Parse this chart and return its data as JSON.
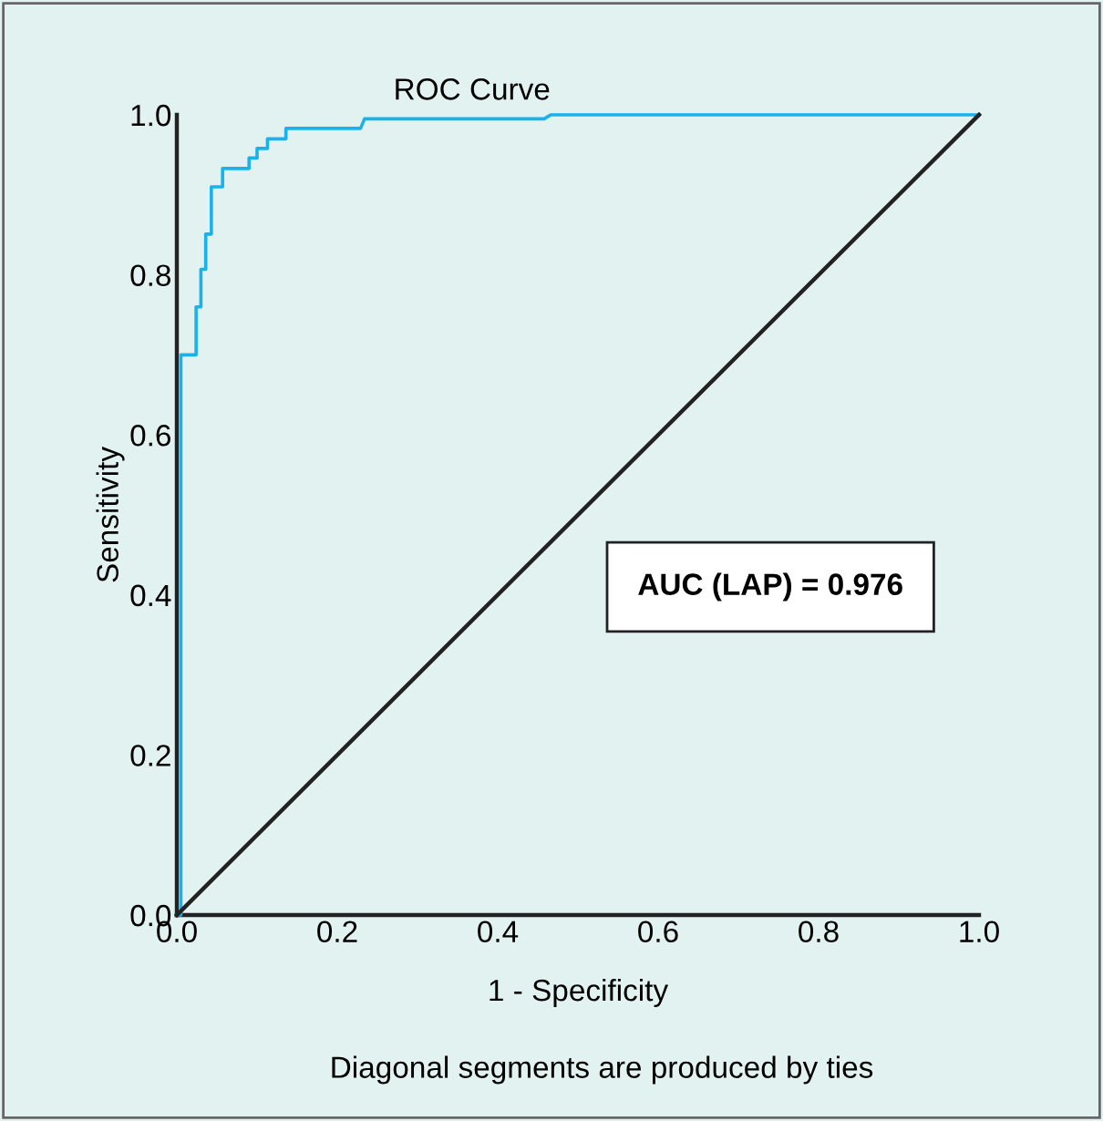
{
  "chart_data": {
    "type": "line",
    "title": "ROC Curve",
    "xlabel": "1 - Specificity",
    "ylabel": "Sensitivity",
    "xlim": [
      0,
      1
    ],
    "ylim": [
      0,
      1
    ],
    "xticks": [
      {
        "value": 0,
        "label": "0.0"
      },
      0.2,
      0.4,
      0.6,
      0.8,
      {
        "value": 1,
        "label": "1.0"
      }
    ],
    "yticks": [
      {
        "value": 0,
        "label": "0.0"
      },
      0.2,
      0.4,
      0.6,
      0.8,
      {
        "value": 1,
        "label": "1.0"
      }
    ],
    "grid": false,
    "legend": false,
    "marker": "none",
    "line_style": "solid",
    "series": [
      {
        "color": "#1ab2ea",
        "x": [
          0,
          0.005,
          0.005,
          0.024,
          0.024,
          0.03,
          0.03,
          0.036,
          0.036,
          0.043,
          0.043,
          0.057,
          0.057,
          0.09,
          0.09,
          0.1,
          0.1,
          0.113,
          0.113,
          0.136,
          0.136,
          0.229,
          0.234,
          0.458,
          0.466,
          1.0
        ],
        "values": [
          0,
          0,
          0.7,
          0.7,
          0.76,
          0.76,
          0.807,
          0.807,
          0.851,
          0.851,
          0.91,
          0.91,
          0.933,
          0.933,
          0.946,
          0.946,
          0.958,
          0.958,
          0.97,
          0.97,
          0.983,
          0.983,
          0.995,
          0.995,
          1.0,
          1.0
        ]
      },
      {
        "color": "#222222",
        "x": [
          0,
          1
        ],
        "values": [
          0,
          1
        ]
      }
    ],
    "annotations": [
      "AUC (LAP) = 0.976",
      "Diagonal segments are produced by ties"
    ]
  }
}
